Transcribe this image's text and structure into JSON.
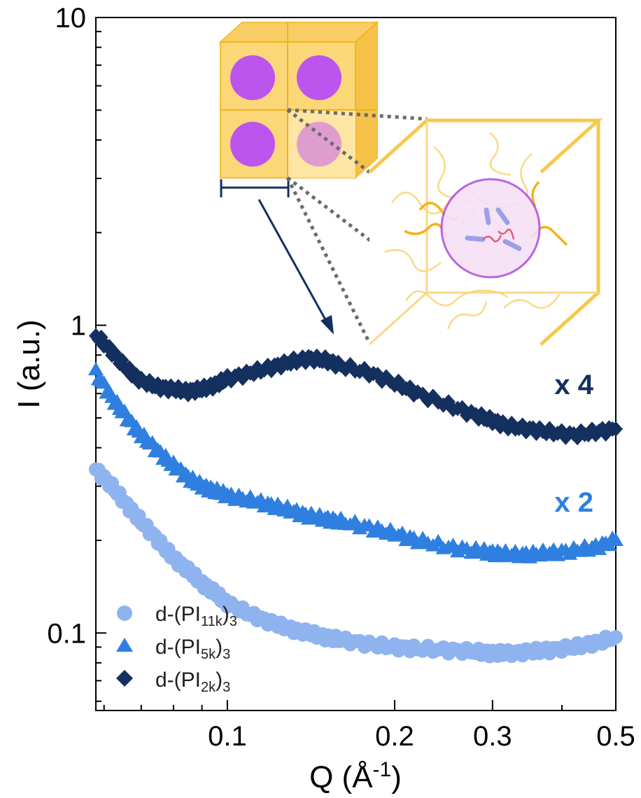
{
  "chart_data": {
    "type": "scatter",
    "xscale": "log",
    "yscale": "log",
    "xlim": [
      0.058,
      0.5
    ],
    "ylim": [
      0.056,
      10
    ],
    "x_ticks": [
      {
        "value": 0.1,
        "label": "0.1"
      },
      {
        "value": 0.2,
        "label": "0.2"
      },
      {
        "value": 0.3,
        "label": "0.3"
      },
      {
        "value": 0.5,
        "label": "0.5"
      }
    ],
    "y_ticks": [
      {
        "value": 0.1,
        "label": "0.1"
      },
      {
        "value": 1,
        "label": "1"
      },
      {
        "value": 10,
        "label": "10"
      }
    ],
    "xlabel": {
      "main": "Q (Å",
      "sup": "-1",
      "close": ")"
    },
    "ylabel": "I (a.u.)",
    "legend_position": "bottom-left",
    "series": [
      {
        "name_main": "d-(PI",
        "name_sub": "11k",
        "name_close": ")",
        "name_sub2": "3",
        "marker": "circle",
        "color": "#8fb3ee",
        "x": [
          0.058,
          0.062,
          0.066,
          0.07,
          0.075,
          0.08,
          0.085,
          0.09,
          0.095,
          0.1,
          0.11,
          0.12,
          0.13,
          0.14,
          0.15,
          0.16,
          0.18,
          0.2,
          0.22,
          0.25,
          0.28,
          0.3,
          0.32,
          0.35,
          0.38,
          0.42,
          0.46,
          0.5
        ],
        "y": [
          0.34,
          0.3,
          0.26,
          0.23,
          0.2,
          0.175,
          0.16,
          0.145,
          0.135,
          0.125,
          0.115,
          0.108,
          0.103,
          0.1,
          0.097,
          0.095,
          0.092,
          0.09,
          0.089,
          0.088,
          0.087,
          0.086,
          0.086,
          0.087,
          0.088,
          0.09,
          0.093,
          0.097
        ]
      },
      {
        "name_main": "d-(PI",
        "name_sub": "5k",
        "name_close": ")",
        "name_sub2": "3",
        "marker": "triangle",
        "color": "#2f7fe0",
        "x": [
          0.058,
          0.062,
          0.066,
          0.07,
          0.075,
          0.08,
          0.085,
          0.09,
          0.095,
          0.1,
          0.11,
          0.12,
          0.13,
          0.14,
          0.15,
          0.16,
          0.18,
          0.2,
          0.22,
          0.25,
          0.28,
          0.3,
          0.32,
          0.35,
          0.38,
          0.42,
          0.46,
          0.5
        ],
        "y": [
          0.7,
          0.58,
          0.5,
          0.44,
          0.39,
          0.35,
          0.32,
          0.3,
          0.29,
          0.28,
          0.27,
          0.26,
          0.25,
          0.24,
          0.235,
          0.23,
          0.22,
          0.21,
          0.2,
          0.19,
          0.185,
          0.182,
          0.18,
          0.18,
          0.182,
          0.185,
          0.19,
          0.2
        ]
      },
      {
        "name_main": "d-(PI",
        "name_sub": "2k",
        "name_close": ")",
        "name_sub2": "3",
        "marker": "diamond",
        "color": "#14305f",
        "x": [
          0.058,
          0.062,
          0.066,
          0.07,
          0.075,
          0.08,
          0.085,
          0.09,
          0.095,
          0.1,
          0.11,
          0.12,
          0.13,
          0.14,
          0.15,
          0.16,
          0.18,
          0.2,
          0.22,
          0.25,
          0.28,
          0.3,
          0.32,
          0.35,
          0.38,
          0.42,
          0.46,
          0.5
        ],
        "y": [
          0.93,
          0.82,
          0.72,
          0.66,
          0.63,
          0.62,
          0.61,
          0.62,
          0.64,
          0.67,
          0.7,
          0.73,
          0.76,
          0.78,
          0.77,
          0.74,
          0.7,
          0.65,
          0.6,
          0.55,
          0.51,
          0.49,
          0.47,
          0.46,
          0.45,
          0.44,
          0.45,
          0.46
        ]
      }
    ],
    "annotations": [
      {
        "text": "x 4",
        "color": "#14305f"
      },
      {
        "text": "x 2",
        "color": "#2f7fe0"
      }
    ]
  }
}
